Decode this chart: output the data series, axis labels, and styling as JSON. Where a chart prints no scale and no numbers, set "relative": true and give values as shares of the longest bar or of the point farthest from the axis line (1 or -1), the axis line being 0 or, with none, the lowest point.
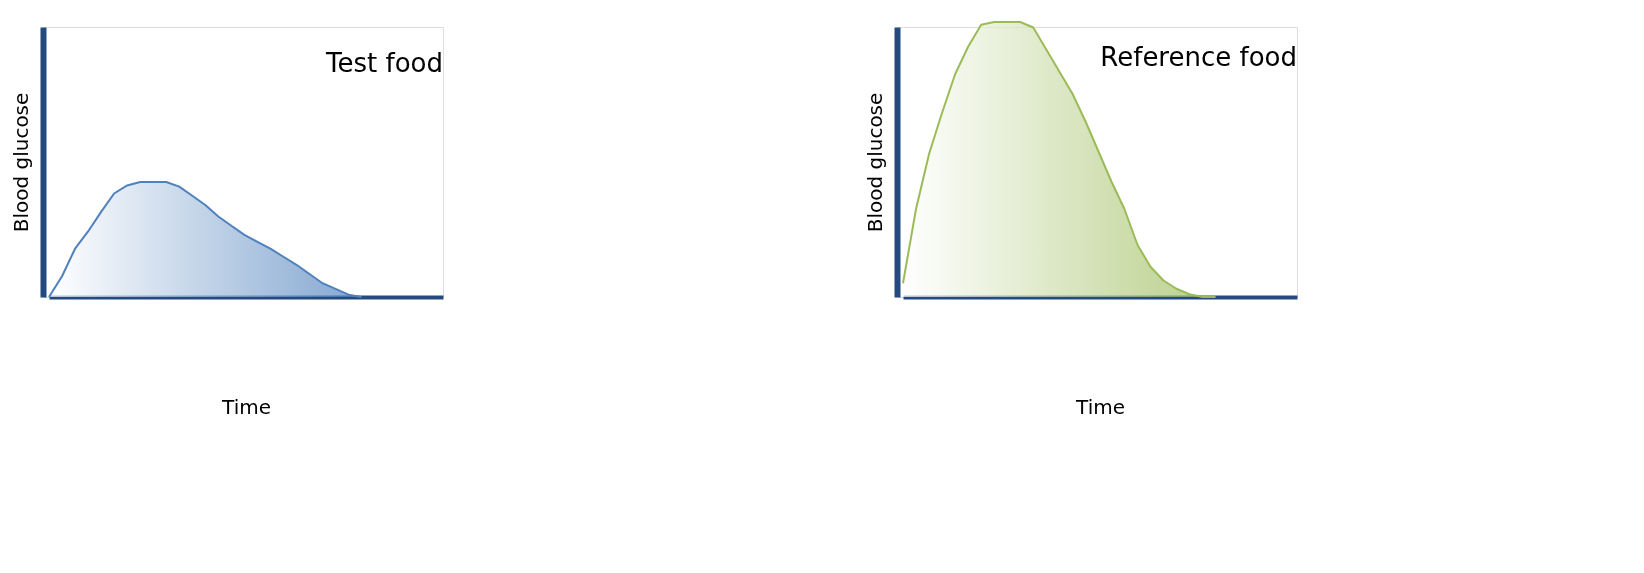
{
  "chart_data": [
    {
      "type": "area",
      "title": "Test food",
      "xlabel": "Time",
      "ylabel": "Blood glucose",
      "relative": true,
      "categories": [
        null,
        null,
        null,
        null,
        null,
        null,
        null,
        null,
        null,
        null,
        null,
        null,
        null,
        null,
        null,
        null,
        null,
        null,
        null,
        null,
        null,
        null,
        null,
        null,
        null
      ],
      "series": [
        {
          "color": "#4f81bd",
          "values": [
            0,
            0.18,
            0.42,
            0.57,
            0.74,
            0.9,
            0.97,
            1,
            1,
            1,
            0.96,
            0.88,
            0.8,
            0.7,
            0.62,
            0.54,
            0.48,
            0.42,
            0.35,
            0.28,
            0.2,
            0.12,
            0.07,
            0.02,
            0
          ]
        }
      ]
    },
    {
      "type": "area",
      "title": "Reference food",
      "xlabel": "Time",
      "ylabel": "Blood glucose",
      "relative": true,
      "categories": [
        null,
        null,
        null,
        null,
        null,
        null,
        null,
        null,
        null,
        null,
        null,
        null,
        null,
        null,
        null,
        null,
        null,
        null,
        null,
        null,
        null,
        null,
        null,
        null,
        null
      ],
      "series": [
        {
          "color": "#9bbb59",
          "values": [
            0.05,
            0.32,
            0.52,
            0.67,
            0.81,
            0.91,
            0.99,
            1,
            1,
            1,
            0.98,
            0.9,
            0.82,
            0.74,
            0.64,
            0.53,
            0.42,
            0.32,
            0.19,
            0.11,
            0.06,
            0.03,
            0.01,
            0,
            0
          ]
        }
      ]
    }
  ]
}
